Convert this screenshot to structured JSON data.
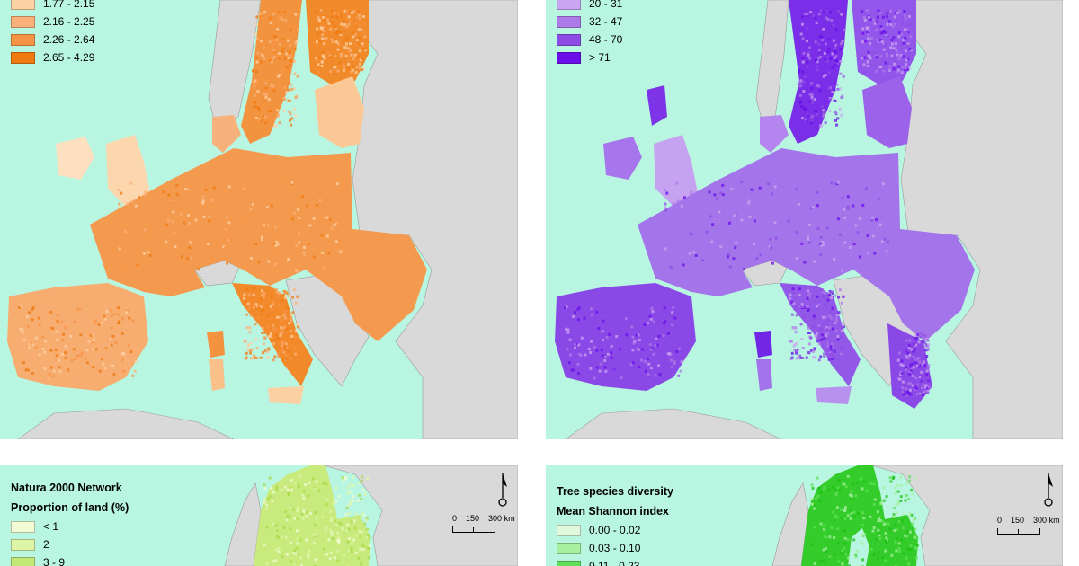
{
  "panels": {
    "top_left": {
      "legend_rows": [
        {
          "label": "1.77 - 2.15",
          "color": "#fdd2a5"
        },
        {
          "label": "2.16 - 2.25",
          "color": "#fab07a"
        },
        {
          "label": "2.26 - 2.64",
          "color": "#f79346"
        },
        {
          "label": "2.65 - 4.29",
          "color": "#ef7a10"
        }
      ],
      "land_color": "#ef7a10",
      "land_light": "#fdd2a5"
    },
    "top_right": {
      "legend_rows": [
        {
          "label": "20 - 31",
          "color": "#c9a6ef"
        },
        {
          "label": "32 - 47",
          "color": "#ae7ae8"
        },
        {
          "label": "48 - 70",
          "color": "#8e4ce6"
        },
        {
          "label": "> 71",
          "color": "#6a0fe8"
        }
      ],
      "land_color": "#9a5ce8",
      "land_light": "#c9a6ef"
    },
    "bottom_left": {
      "title": "Natura 2000 Network",
      "subtitle": "Proportion of land (%)",
      "legend_rows": [
        {
          "label": "< 1",
          "color": "#f2fbd3"
        },
        {
          "label": "2",
          "color": "#def5a8"
        },
        {
          "label": "3 - 9",
          "color": "#c2e878"
        }
      ],
      "scale": {
        "labels": [
          "0",
          "150",
          "300 km"
        ]
      },
      "land_color": "#b6e05a"
    },
    "bottom_right": {
      "title": "Tree species diversity",
      "subtitle": "Mean Shannon index",
      "legend_rows": [
        {
          "label": "0.00 - 0.02",
          "color": "#e0f8dc"
        },
        {
          "label": "0.03 - 0.10",
          "color": "#a7f0a0"
        },
        {
          "label": "0.11 - 0.23",
          "color": "#62e05a"
        }
      ],
      "scale": {
        "labels": [
          "0",
          "150",
          "300 km"
        ]
      },
      "land_color": "#3ed22e"
    }
  },
  "colors": {
    "sea": "#b8f6e2",
    "non_study_land": "#d9d9d9"
  }
}
